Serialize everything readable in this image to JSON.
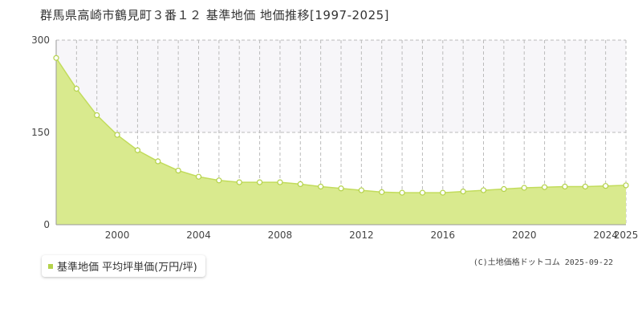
{
  "chart_data": {
    "type": "area",
    "title": "群馬県高崎市鶴見町３番１２ 基準地価 地価推移[1997-2025]",
    "x": [
      1997,
      1998,
      1999,
      2000,
      2001,
      2002,
      2003,
      2004,
      2005,
      2006,
      2007,
      2008,
      2009,
      2010,
      2011,
      2012,
      2013,
      2014,
      2015,
      2016,
      2017,
      2018,
      2019,
      2020,
      2021,
      2022,
      2023,
      2024,
      2025
    ],
    "series": [
      {
        "name": "基準地価 平均坪単価(万円/坪)",
        "values": [
          271,
          221,
          178,
          146,
          121,
          103,
          88,
          78,
          72,
          69,
          69,
          69,
          66,
          62,
          59,
          56,
          53,
          52,
          52,
          52,
          54,
          56,
          58,
          60,
          61,
          62,
          62,
          63,
          64
        ]
      }
    ],
    "xlim": [
      1997,
      2025
    ],
    "ylim": [
      0,
      300
    ],
    "yticks": [
      {
        "value": 0,
        "label": "0"
      },
      {
        "value": 150,
        "label": "150"
      },
      {
        "value": 300,
        "label": "300"
      }
    ],
    "xticks": [
      {
        "value": 2000,
        "label": "2000"
      },
      {
        "value": 2004,
        "label": "2004"
      },
      {
        "value": 2008,
        "label": "2008"
      },
      {
        "value": 2012,
        "label": "2012"
      },
      {
        "value": 2016,
        "label": "2016"
      },
      {
        "value": 2020,
        "label": "2020"
      },
      {
        "value": 2024,
        "label": "2024"
      },
      {
        "value": 2025,
        "label": "2025"
      }
    ],
    "grid": true,
    "legend": "bottom-left"
  },
  "copyright": "(C)土地価格ドットコム 2025-09-22",
  "colors": {
    "fill": "#d9ea8e",
    "line": "#c2dc5c",
    "marker_fill": "#ffffff",
    "marker_stroke": "#b4d24a",
    "grid": "#bbbbbb",
    "band": "#f7f6f9",
    "legend_swatch": "#b4d24a"
  }
}
